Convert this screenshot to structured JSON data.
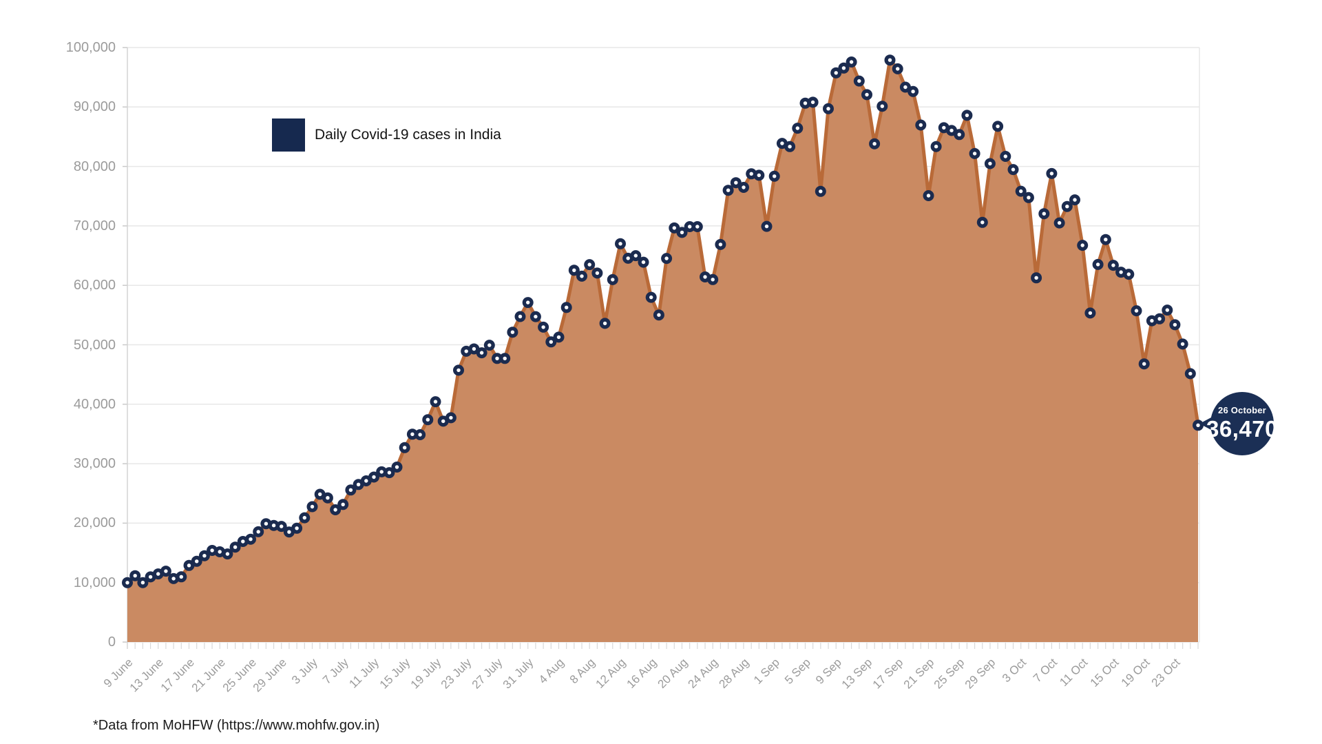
{
  "legend": {
    "label": "Daily Covid-19 cases in India"
  },
  "callout": {
    "date": "26 October",
    "value": "36,470"
  },
  "footer": {
    "note": "*Data from MoHFW (https://www.mohfw.gov.in)"
  },
  "chart_data": {
    "type": "area",
    "title": "",
    "series_name": "Daily Covid-19 cases in India",
    "x_start": "9 June",
    "x_end": "26 October",
    "x_frequency": "daily",
    "ylim": [
      0,
      100000
    ],
    "grid": "horizontal",
    "legend_position": "top-left-inside",
    "y_ticks": [
      {
        "value": 0,
        "label": "0"
      },
      {
        "value": 10000,
        "label": "10,000"
      },
      {
        "value": 20000,
        "label": "20,000"
      },
      {
        "value": 30000,
        "label": "30,000"
      },
      {
        "value": 40000,
        "label": "40,000"
      },
      {
        "value": 50000,
        "label": "50,000"
      },
      {
        "value": 60000,
        "label": "60,000"
      },
      {
        "value": 70000,
        "label": "70,000"
      },
      {
        "value": 80000,
        "label": "80,000"
      },
      {
        "value": 90000,
        "label": "90,000"
      },
      {
        "value": 100000,
        "label": "100,000"
      }
    ],
    "x_ticks": [
      {
        "i": 0,
        "label": "9 June"
      },
      {
        "i": 4,
        "label": "13 June"
      },
      {
        "i": 8,
        "label": "17 June"
      },
      {
        "i": 12,
        "label": "21 June"
      },
      {
        "i": 16,
        "label": "25 June"
      },
      {
        "i": 20,
        "label": "29 June"
      },
      {
        "i": 24,
        "label": "3 July"
      },
      {
        "i": 28,
        "label": "7 July"
      },
      {
        "i": 32,
        "label": "11 July"
      },
      {
        "i": 36,
        "label": "15 July"
      },
      {
        "i": 40,
        "label": "19 July"
      },
      {
        "i": 44,
        "label": "23 July"
      },
      {
        "i": 48,
        "label": "27 July"
      },
      {
        "i": 52,
        "label": "31 July"
      },
      {
        "i": 56,
        "label": "4 Aug"
      },
      {
        "i": 60,
        "label": "8 Aug"
      },
      {
        "i": 64,
        "label": "12 Aug"
      },
      {
        "i": 68,
        "label": "16 Aug"
      },
      {
        "i": 72,
        "label": "20 Aug"
      },
      {
        "i": 76,
        "label": "24 Aug"
      },
      {
        "i": 80,
        "label": "28 Aug"
      },
      {
        "i": 84,
        "label": "1 Sep"
      },
      {
        "i": 88,
        "label": "5 Sep"
      },
      {
        "i": 92,
        "label": "9 Sep"
      },
      {
        "i": 96,
        "label": "13 Sep"
      },
      {
        "i": 100,
        "label": "17 Sep"
      },
      {
        "i": 104,
        "label": "21 Sep"
      },
      {
        "i": 108,
        "label": "25 Sep"
      },
      {
        "i": 112,
        "label": "29 Sep"
      },
      {
        "i": 116,
        "label": "3 Oct"
      },
      {
        "i": 120,
        "label": "7 Oct"
      },
      {
        "i": 124,
        "label": "11 Oct"
      },
      {
        "i": 128,
        "label": "15 Oct"
      },
      {
        "i": 132,
        "label": "19 Oct"
      },
      {
        "i": 136,
        "label": "23 Oct"
      }
    ],
    "values": [
      9987,
      11156,
      9996,
      10956,
      11458,
      11929,
      10667,
      10974,
      12881,
      13586,
      14516,
      15413,
      15183,
      14821,
      15968,
      16922,
      17296,
      18552,
      19906,
      19620,
      19459,
      18522,
      19148,
      20903,
      22771,
      24850,
      24248,
      22252,
      23135,
      25571,
      26506,
      27114,
      27754,
      28637,
      28498,
      29429,
      32695,
      34956,
      34884,
      37407,
      40425,
      37148,
      37724,
      45720,
      48916,
      49310,
      48661,
      49931,
      47703,
      47704,
      52123,
      54750,
      57118,
      54735,
      52972,
      50488,
      51282,
      56282,
      62538,
      61537,
      63490,
      62064,
      53601,
      60963,
      66999,
      64553,
      64993,
      63897,
      57981,
      55018,
      64531,
      69652,
      68898,
      69874,
      69878,
      61408,
      60975,
      66873,
      75995,
      77266,
      76472,
      78761,
      78512,
      69921,
      78357,
      83883,
      83341,
      86432,
      90632,
      90802,
      75809,
      89706,
      95735,
      96551,
      97570,
      94372,
      92071,
      83809,
      90123,
      97894,
      96424,
      93337,
      92605,
      86961,
      75083,
      83347,
      86508,
      86052,
      85362,
      88600,
      82170,
      70589,
      80472,
      86748,
      81693,
      79476,
      75829,
      74767,
      61267,
      72049,
      78809,
      70496,
      73272,
      74383,
      66732,
      55342,
      63509,
      67708,
      63371,
      62212,
      61871,
      55722,
      46790,
      54044,
      54366,
      55839,
      53370,
      50129,
      45148,
      36470
    ],
    "highlight": {
      "index": 139,
      "date": "26 October",
      "value": 36470
    },
    "colors": {
      "area_fill": "#ca8a62",
      "line": "#b96a38",
      "point": "#1b2b4f",
      "point_center": "#ffffff",
      "navy": "#16294f",
      "callout_bg": "#1b2f55",
      "grid": "#e7e7e7",
      "axis": "#d4d4d4",
      "day_tick": "#d9d9d9",
      "tick_label": "#9b9b9b"
    }
  }
}
